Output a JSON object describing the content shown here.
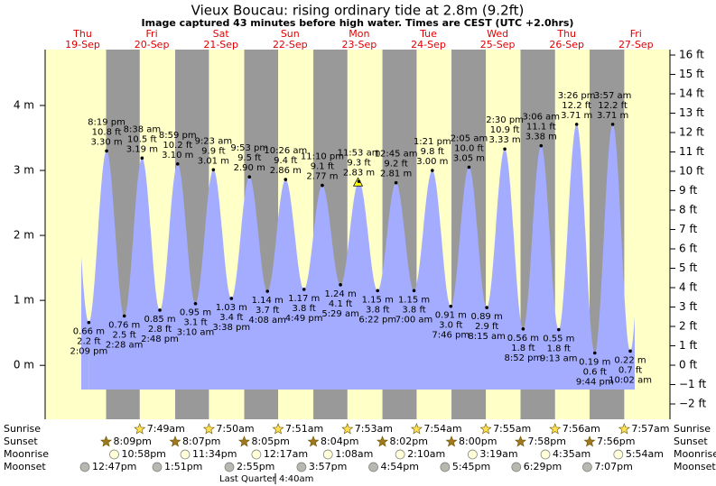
{
  "chart_data": {
    "type": "area",
    "title": "Vieux Boucau: rising  ordinary tide at 2.8m (9.2ft)",
    "subtitle": "Image captured 43 minutes before high water. Times are CEST (UTC +2.0hrs)",
    "color": "#a4acff",
    "day_color": "#ffffc8",
    "night_color": "#999999",
    "ylim": [
      -0.83,
      4.86
    ],
    "yticks": [
      {
        "value": 0,
        "label": "0 m"
      },
      {
        "value": 1,
        "label": "1 m"
      },
      {
        "value": 2,
        "label": "2 m"
      },
      {
        "value": 3,
        "label": "3 m"
      },
      {
        "value": 4,
        "label": "4 m"
      }
    ],
    "y2lim": [
      -2.79,
      16.28
    ],
    "y2ticks": [
      {
        "value": -2,
        "label": "−2 ft"
      },
      {
        "value": -1,
        "label": "−1 ft"
      },
      {
        "value": 0,
        "label": "0 ft"
      },
      {
        "value": 1,
        "label": "1 ft"
      },
      {
        "value": 2,
        "label": "2 ft"
      },
      {
        "value": 3,
        "label": "3 ft"
      },
      {
        "value": 4,
        "label": "4 ft"
      },
      {
        "value": 5,
        "label": "5 ft"
      },
      {
        "value": 6,
        "label": "6 ft"
      },
      {
        "value": 7,
        "label": "7 ft"
      },
      {
        "value": 8,
        "label": "8 ft"
      },
      {
        "value": 9,
        "label": "9 ft"
      },
      {
        "value": 10,
        "label": "10 ft"
      },
      {
        "value": 11,
        "label": "11 ft"
      },
      {
        "value": 12,
        "label": "12 ft"
      },
      {
        "value": 13,
        "label": "13 ft"
      },
      {
        "value": 14,
        "label": "14 ft"
      },
      {
        "value": 15,
        "label": "15 ft"
      },
      {
        "value": 16,
        "label": "16 ft"
      }
    ],
    "row_labels": {
      "sunrise": "Sunrise",
      "sunset": "Sunset",
      "moonrise": "Moonrise",
      "moonset": "Moonset"
    },
    "moon_phase": {
      "name": "Last Quarter",
      "time": "4:40am"
    },
    "days": [
      {
        "name": "Thu",
        "date": "19-Sep",
        "sunset": "8:09pm",
        "moonrise": "10:58pm",
        "moonset": "12:47pm",
        "tides": [
          {
            "time": "2:09 pm",
            "m": 0.66,
            "m_label": "0.66 m",
            "ft": "2.2 ft"
          },
          {
            "time": "8:19 pm",
            "m": 3.3,
            "m_label": "3.30 m",
            "ft": "10.8 ft"
          }
        ]
      },
      {
        "name": "Fri",
        "date": "20-Sep",
        "sunrise": "7:49am",
        "sunset": "8:07pm",
        "moonrise": "11:34pm",
        "moonset": "1:51pm",
        "tides": [
          {
            "time": "2:28 am",
            "m": 0.76,
            "m_label": "0.76 m",
            "ft": "2.5 ft"
          },
          {
            "time": "8:38 am",
            "m": 3.19,
            "m_label": "3.19 m",
            "ft": "10.5 ft"
          },
          {
            "time": "2:48 pm",
            "m": 0.85,
            "m_label": "0.85 m",
            "ft": "2.8 ft"
          },
          {
            "time": "8:59 pm",
            "m": 3.1,
            "m_label": "3.10 m",
            "ft": "10.2 ft"
          }
        ]
      },
      {
        "name": "Sat",
        "date": "21-Sep",
        "sunrise": "7:50am",
        "sunset": "8:05pm",
        "moonset": "2:55pm",
        "tides": [
          {
            "time": "3:10 am",
            "m": 0.95,
            "m_label": "0.95 m",
            "ft": "3.1 ft"
          },
          {
            "time": "9:23 am",
            "m": 3.01,
            "m_label": "3.01 m",
            "ft": "9.9 ft"
          },
          {
            "time": "3:38 pm",
            "m": 1.03,
            "m_label": "1.03 m",
            "ft": "3.4 ft"
          },
          {
            "time": "9:53 pm",
            "m": 2.9,
            "m_label": "2.90 m",
            "ft": "9.5 ft"
          }
        ]
      },
      {
        "name": "Sun",
        "date": "22-Sep",
        "sunrise": "7:51am",
        "sunset": "8:04pm",
        "moonrise": "12:17am",
        "moonset": "3:57pm",
        "tides": [
          {
            "time": "4:08 am",
            "m": 1.14,
            "m_label": "1.14 m",
            "ft": "3.7 ft"
          },
          {
            "time": "10:26 am",
            "m": 2.86,
            "m_label": "2.86 m",
            "ft": "9.4 ft"
          },
          {
            "time": "4:49 pm",
            "m": 1.17,
            "m_label": "1.17 m",
            "ft": "3.8 ft"
          },
          {
            "time": "11:10 pm",
            "m": 2.77,
            "m_label": "2.77 m",
            "ft": "9.1 ft"
          }
        ]
      },
      {
        "name": "Mon",
        "date": "23-Sep",
        "sunrise": "7:53am",
        "sunset": "8:02pm",
        "moonrise": "1:08am",
        "moonset": "4:54pm",
        "tides": [
          {
            "time": "5:29 am",
            "m": 1.24,
            "m_label": "1.24 m",
            "ft": "4.1 ft"
          },
          {
            "time": "11:53 am",
            "m": 2.83,
            "m_label": "2.83 m",
            "ft": "9.3 ft"
          },
          {
            "time": "6:22 pm",
            "m": 1.15,
            "m_label": "1.15 m",
            "ft": "3.8 ft"
          }
        ]
      },
      {
        "name": "Tue",
        "date": "24-Sep",
        "sunrise": "7:54am",
        "sunset": "8:00pm",
        "moonrise": "2:10am",
        "moonset": "5:45pm",
        "tides": [
          {
            "time": "12:45 am",
            "m": 2.81,
            "m_label": "2.81 m",
            "ft": "9.2 ft"
          },
          {
            "time": "7:00 am",
            "m": 1.15,
            "m_label": "1.15 m",
            "ft": "3.8 ft"
          },
          {
            "time": "1:21 pm",
            "m": 3.0,
            "m_label": "3.00 m",
            "ft": "9.8 ft"
          },
          {
            "time": "7:46 pm",
            "m": 0.91,
            "m_label": "0.91 m",
            "ft": "3.0 ft"
          }
        ]
      },
      {
        "name": "Wed",
        "date": "25-Sep",
        "sunrise": "7:55am",
        "sunset": "7:58pm",
        "moonrise": "3:19am",
        "moonset": "6:29pm",
        "tides": [
          {
            "time": "2:05 am",
            "m": 3.05,
            "m_label": "3.05 m",
            "ft": "10.0 ft"
          },
          {
            "time": "8:15 am",
            "m": 0.89,
            "m_label": "0.89 m",
            "ft": "2.9 ft"
          },
          {
            "time": "2:30 pm",
            "m": 3.33,
            "m_label": "3.33 m",
            "ft": "10.9 ft"
          },
          {
            "time": "8:52 pm",
            "m": 0.56,
            "m_label": "0.56 m",
            "ft": "1.8 ft"
          }
        ]
      },
      {
        "name": "Thu",
        "date": "26-Sep",
        "sunrise": "7:56am",
        "sunset": "7:56pm",
        "moonrise": "4:35am",
        "moonset": "7:07pm",
        "tides": [
          {
            "time": "3:06 am",
            "m": 3.38,
            "m_label": "3.38 m",
            "ft": "11.1 ft"
          },
          {
            "time": "9:13 am",
            "m": 0.55,
            "m_label": "0.55 m",
            "ft": "1.8 ft"
          },
          {
            "time": "3:26 pm",
            "m": 3.71,
            "m_label": "3.71 m",
            "ft": "12.2 ft"
          },
          {
            "time": "9:44 pm",
            "m": 0.19,
            "m_label": "0.19 m",
            "ft": "0.6 ft"
          }
        ]
      },
      {
        "name": "Fri",
        "date": "27-Sep",
        "sunrise": "7:57am",
        "moonrise": "5:54am",
        "tides": [
          {
            "time": "3:57 am",
            "m": 3.71,
            "m_label": "3.71 m",
            "ft": "12.2 ft"
          },
          {
            "time": "10:02 am",
            "m": 0.22,
            "m_label": "0.22 m",
            "ft": "0.7 ft"
          }
        ]
      }
    ]
  }
}
